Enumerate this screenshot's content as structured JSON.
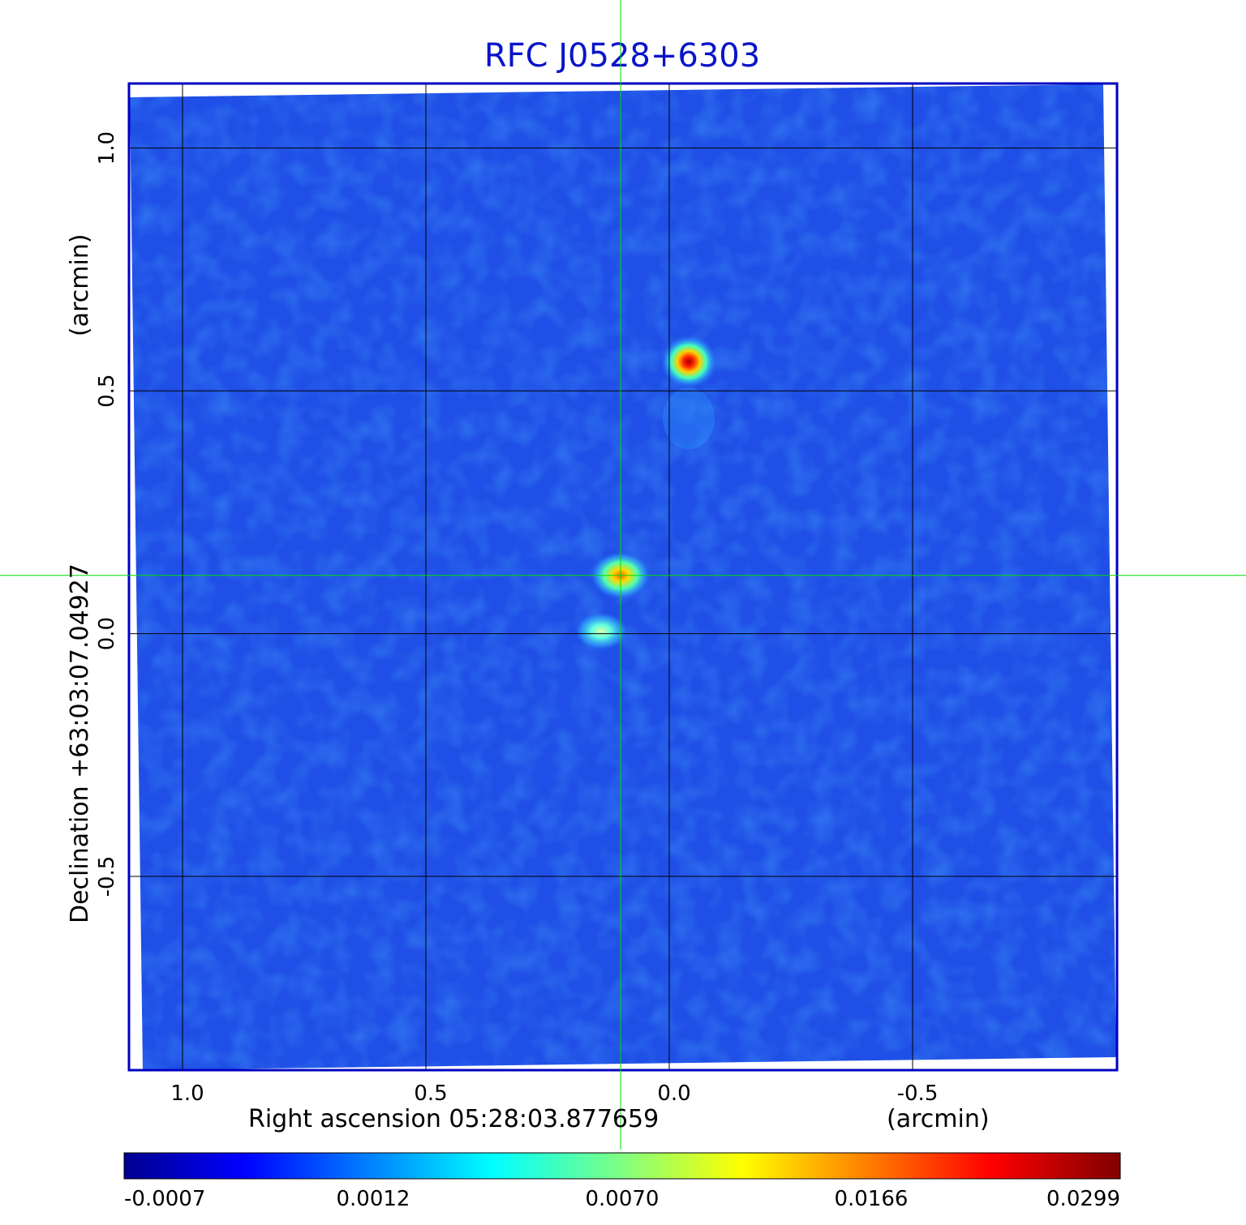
{
  "chart_data": {
    "type": "heatmap",
    "title": "RFC J0528+6303",
    "xlabel": "Right ascension  05:28:03.877659",
    "xunit": "(arcmin)",
    "ylabel": "Declination  +63:03:07.04927",
    "yunit": "(arcmin)",
    "x_ticks": [
      "1.0",
      "0.5",
      "0.0",
      "-0.5"
    ],
    "x_tick_values": [
      1.0,
      0.5,
      0.0,
      -0.5
    ],
    "y_ticks": [
      "1.0",
      "0.5",
      "0.0",
      "-0.5"
    ],
    "y_tick_values": [
      1.0,
      0.5,
      0.0,
      -0.5
    ],
    "xlim": [
      1.11,
      -0.92
    ],
    "ylim": [
      -0.899,
      1.133
    ],
    "grid": true,
    "crosshair": {
      "x": 0.1,
      "y": 0.12
    },
    "sources": [
      {
        "x": -0.04,
        "y": 0.56,
        "peak": 0.0299
      },
      {
        "x": 0.1,
        "y": 0.12,
        "peak": 0.012
      },
      {
        "x": 0.14,
        "y": 0.005,
        "peak": 0.006
      }
    ],
    "colorbar": {
      "ticks": [
        "-0.0007",
        "0.0012",
        "0.0070",
        "0.0166",
        "0.0299"
      ],
      "tick_values": [
        -0.0007,
        0.0012,
        0.007,
        0.0166,
        0.0299
      ],
      "colormap": "jet"
    }
  },
  "colors": {
    "title": "#0a14c8",
    "frame": "#0000c0",
    "background_field": "#1f4fe6",
    "grid": "#000000",
    "crosshair": "#00e000"
  }
}
